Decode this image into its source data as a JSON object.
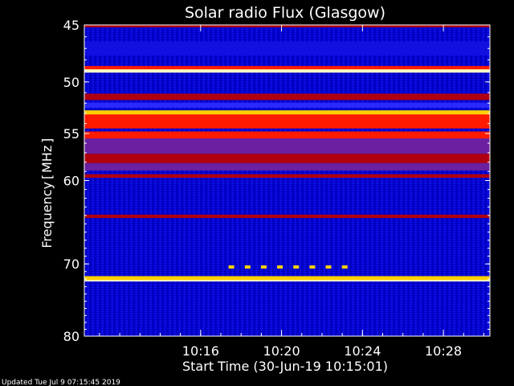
{
  "chart_data": {
    "type": "heatmap",
    "title": "Solar radio Flux (Glasgow)",
    "xlabel": "Start Time (30-Jun-19 10:15:01)",
    "ylabel_main": "Frequency",
    "ylabel_unit": "MHz",
    "footer": "Updated Tue Jul  9 07:15:45 2019",
    "x_range_minutes": [
      10.25,
      30.3
    ],
    "x_ticks": [
      {
        "label": "10:16",
        "minute": 16
      },
      {
        "label": "10:20",
        "minute": 20
      },
      {
        "label": "10:24",
        "minute": 24
      },
      {
        "label": "10:28",
        "minute": 28
      }
    ],
    "y_range_mhz": [
      45,
      80
    ],
    "y_ticks": [
      {
        "label": "45",
        "mhz": 45
      },
      {
        "label": "50",
        "mhz": 50
      },
      {
        "label": "55",
        "mhz": 55
      },
      {
        "label": "60",
        "mhz": 60
      },
      {
        "label": "70",
        "mhz": 70
      },
      {
        "label": "80",
        "mhz": 80
      }
    ],
    "colormap": [
      "#000080",
      "#1010e0",
      "#2a2aff",
      "#6a20a0",
      "#b00010",
      "#ff1a00",
      "#ffd000",
      "#ffffc0"
    ],
    "bands": [
      {
        "mhz": 45.0,
        "width": 0.4,
        "color": "#b00010"
      },
      {
        "mhz": 47.0,
        "width": 1.2,
        "color": "#1010e0"
      },
      {
        "mhz": 48.8,
        "width": 0.5,
        "color": "#ff1a00"
      },
      {
        "mhz": 49.0,
        "width": 0.3,
        "color": "#ffffc0"
      },
      {
        "mhz": 51.4,
        "width": 0.6,
        "color": "#b00010"
      },
      {
        "mhz": 52.2,
        "width": 0.5,
        "color": "#2a2aff"
      },
      {
        "mhz": 53.0,
        "width": 0.6,
        "color": "#ffd000"
      },
      {
        "mhz": 53.8,
        "width": 1.4,
        "color": "#ff1a00"
      },
      {
        "mhz": 55.2,
        "width": 0.8,
        "color": "#ff1a00"
      },
      {
        "mhz": 56.3,
        "width": 1.6,
        "color": "#6a20a0"
      },
      {
        "mhz": 57.6,
        "width": 1.0,
        "color": "#b00010"
      },
      {
        "mhz": 58.5,
        "width": 0.8,
        "color": "#6a20a0"
      },
      {
        "mhz": 59.5,
        "width": 0.4,
        "color": "#b00010"
      },
      {
        "mhz": 64.1,
        "width": 0.4,
        "color": "#b00010"
      },
      {
        "mhz": 71.9,
        "width": 0.6,
        "color": "#ffd000"
      },
      {
        "mhz": 72.2,
        "width": 0.2,
        "color": "#ffffc0"
      }
    ],
    "burst": {
      "mhz": 70.4,
      "minutes": [
        17.5,
        18.3,
        19.1,
        19.9,
        20.7,
        21.5,
        22.3,
        23.1
      ],
      "color": "#ffd000"
    }
  }
}
